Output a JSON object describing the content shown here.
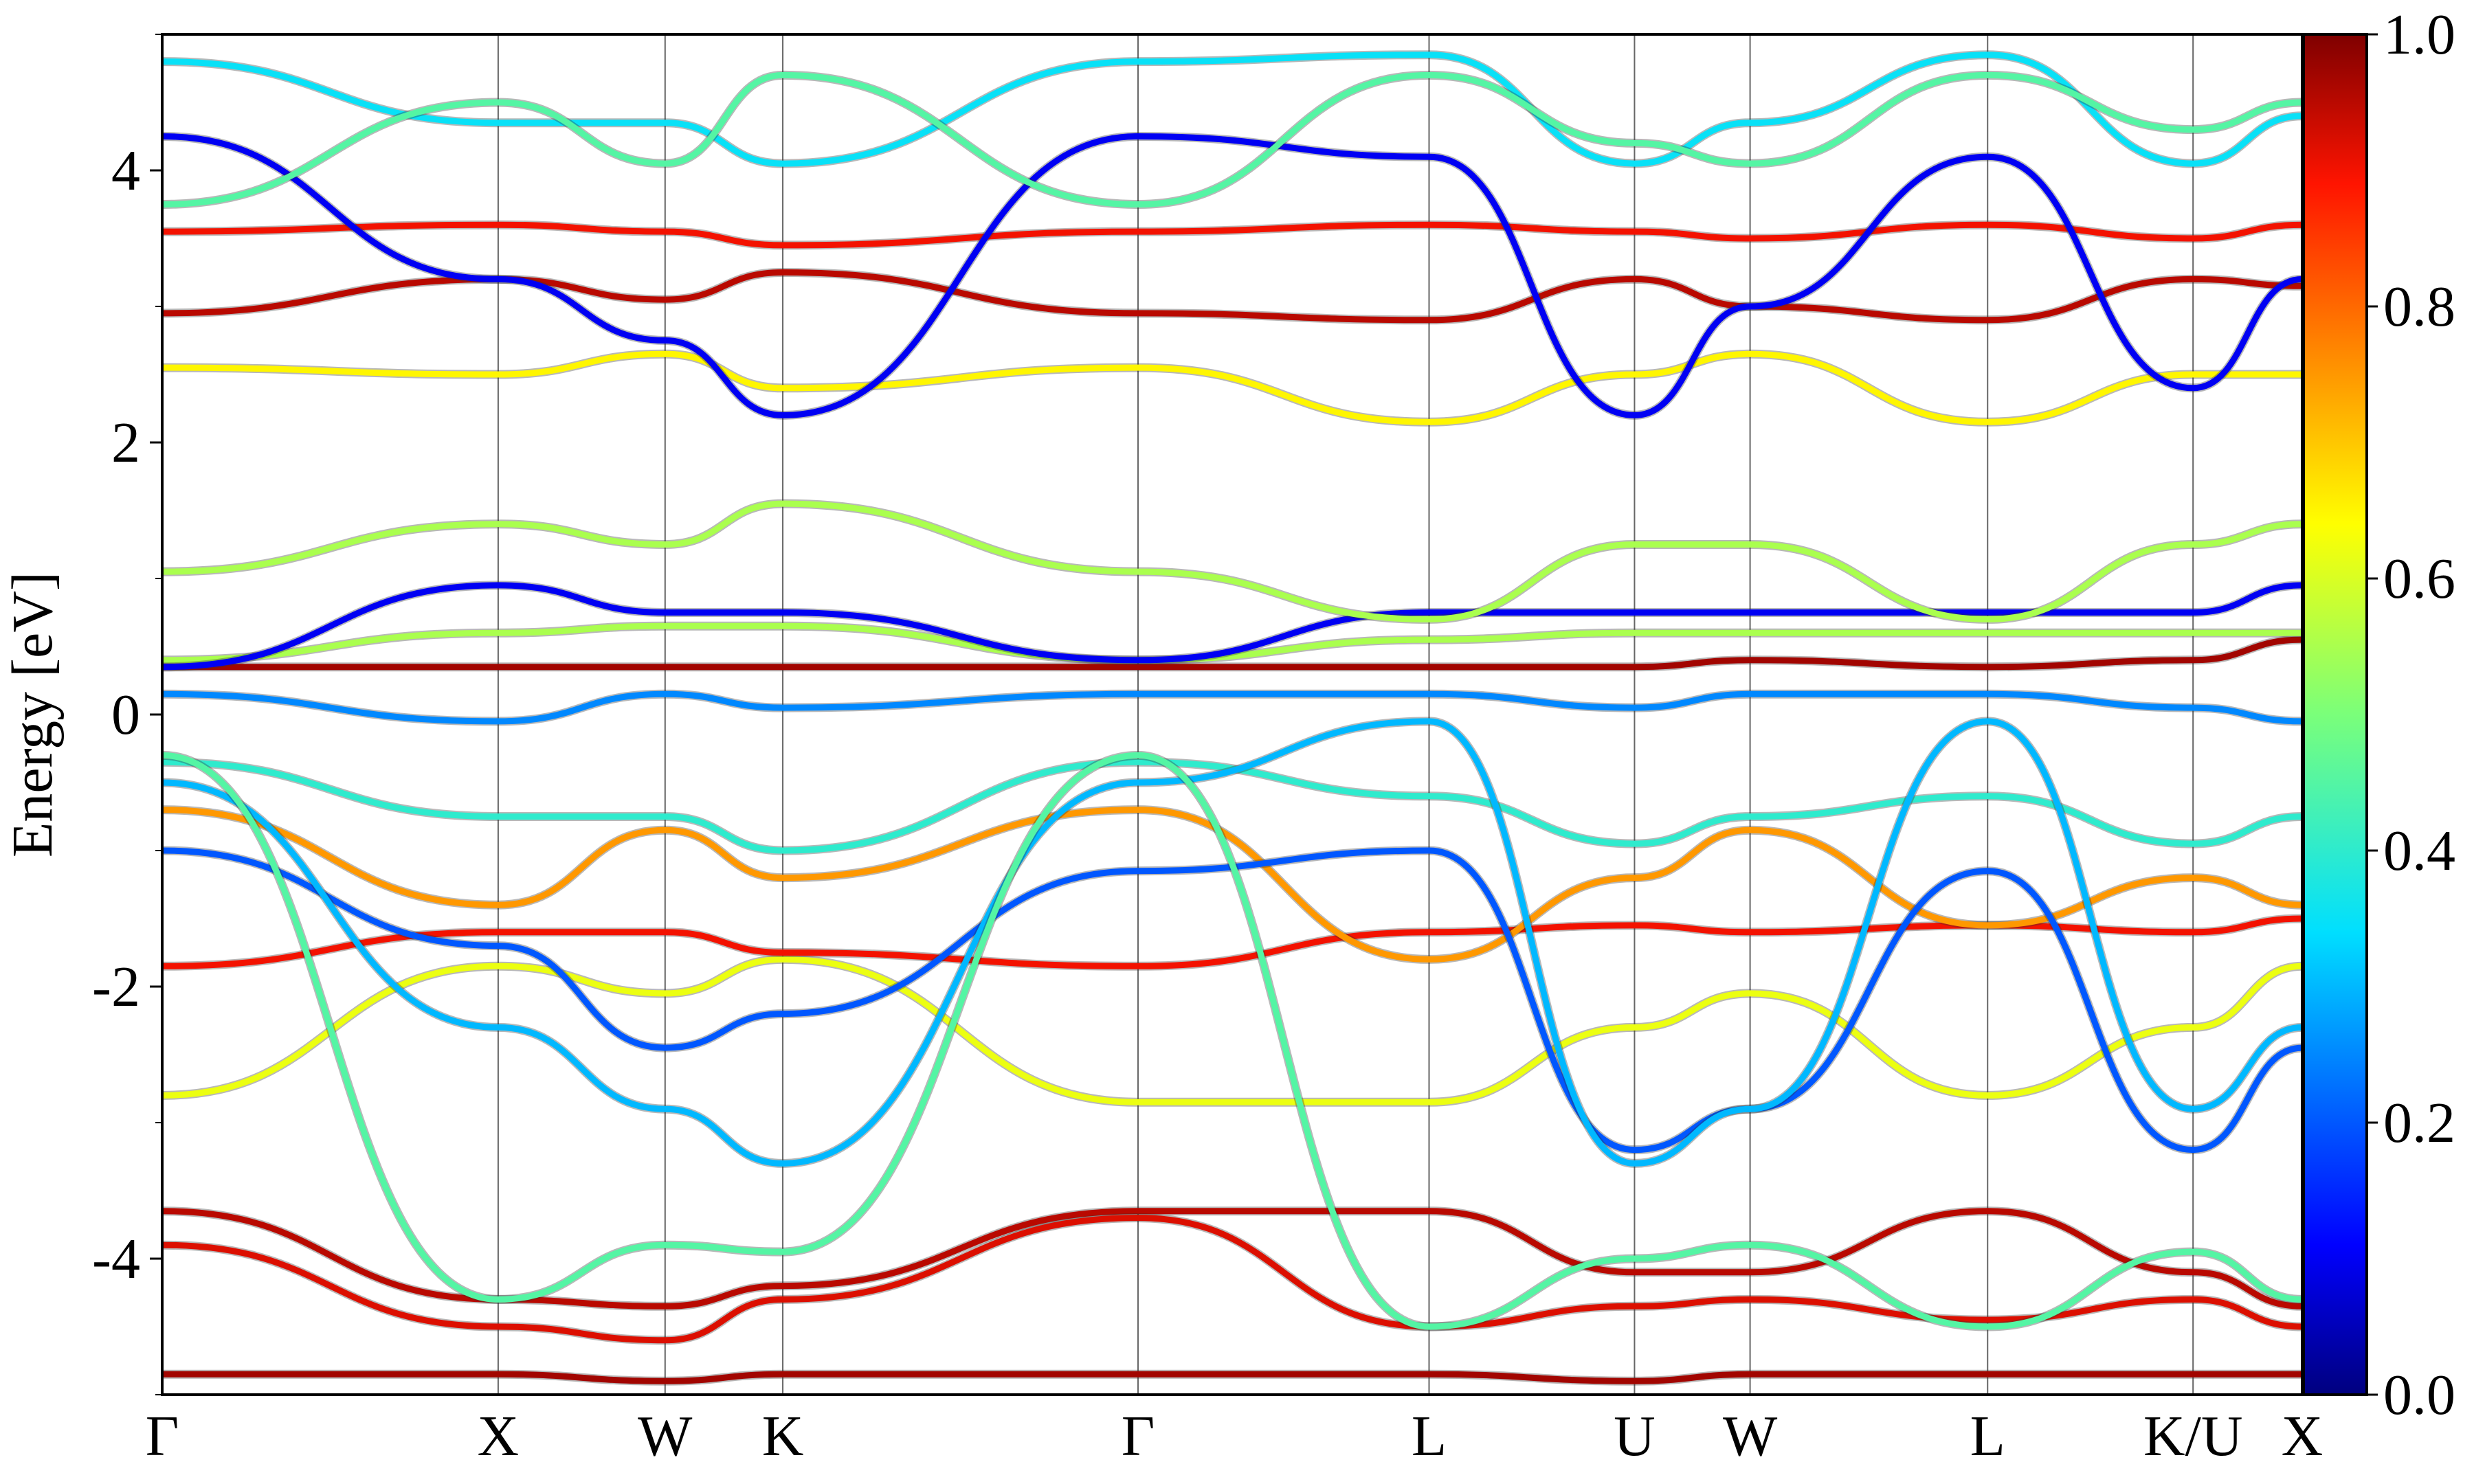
{
  "chart_data": {
    "type": "line",
    "title": "",
    "xlabel": "",
    "ylabel": "Energy [eV]",
    "ylim": [
      -5,
      5
    ],
    "grid": "vertical lines at high-symmetry points",
    "x_ticks": [
      {
        "label": "Γ",
        "x": 0
      },
      {
        "label": "X",
        "x": 0.157
      },
      {
        "label": "W",
        "x": 0.235
      },
      {
        "label": "K",
        "x": 0.29
      },
      {
        "label": "Γ",
        "x": 0.456
      },
      {
        "label": "L",
        "x": 0.592
      },
      {
        "label": "U",
        "x": 0.688
      },
      {
        "label": "W",
        "x": 0.742
      },
      {
        "label": "L",
        "x": 0.853
      },
      {
        "label": "K/U",
        "x": 0.949
      },
      {
        "label": "X",
        "x": 1.0
      }
    ],
    "y_ticks": [
      -4,
      -2,
      0,
      2,
      4
    ],
    "colorbar": {
      "range": [
        0.0,
        1.0
      ],
      "ticks": [
        "0.0",
        "0.2",
        "0.4",
        "0.6",
        "0.8",
        "1.0"
      ],
      "colormap": "jet"
    },
    "series": [
      {
        "color_value": 0.95,
        "points": [
          [
            0,
            -3.65
          ],
          [
            0.157,
            -4.3
          ],
          [
            0.235,
            -4.35
          ],
          [
            0.29,
            -4.2
          ],
          [
            0.456,
            -3.65
          ],
          [
            0.592,
            -3.65
          ],
          [
            0.688,
            -4.1
          ],
          [
            0.742,
            -4.1
          ],
          [
            0.853,
            -3.65
          ],
          [
            0.949,
            -4.1
          ],
          [
            1.0,
            -4.35
          ]
        ]
      },
      {
        "color_value": 0.92,
        "points": [
          [
            0,
            -3.9
          ],
          [
            0.157,
            -4.5
          ],
          [
            0.235,
            -4.6
          ],
          [
            0.29,
            -4.3
          ],
          [
            0.456,
            -3.7
          ],
          [
            0.592,
            -4.5
          ],
          [
            0.688,
            -4.35
          ],
          [
            0.742,
            -4.3
          ],
          [
            0.853,
            -4.45
          ],
          [
            0.949,
            -4.3
          ],
          [
            1.0,
            -4.5
          ]
        ]
      },
      {
        "color_value": 0.97,
        "points": [
          [
            0,
            -4.85
          ],
          [
            0.157,
            -4.85
          ],
          [
            0.235,
            -4.9
          ],
          [
            0.29,
            -4.85
          ],
          [
            0.456,
            -4.85
          ],
          [
            0.592,
            -4.85
          ],
          [
            0.688,
            -4.9
          ],
          [
            0.742,
            -4.85
          ],
          [
            0.853,
            -4.85
          ],
          [
            0.949,
            -4.85
          ],
          [
            1.0,
            -4.85
          ]
        ]
      },
      {
        "color_value": 0.62,
        "points": [
          [
            0,
            -2.8
          ],
          [
            0.157,
            -1.85
          ],
          [
            0.235,
            -2.05
          ],
          [
            0.29,
            -1.8
          ],
          [
            0.456,
            -2.85
          ],
          [
            0.592,
            -2.85
          ],
          [
            0.688,
            -2.3
          ],
          [
            0.742,
            -2.05
          ],
          [
            0.853,
            -2.8
          ],
          [
            0.949,
            -2.3
          ],
          [
            1.0,
            -1.85
          ]
        ]
      },
      {
        "color_value": 0.9,
        "points": [
          [
            0,
            -1.85
          ],
          [
            0.157,
            -1.6
          ],
          [
            0.235,
            -1.6
          ],
          [
            0.29,
            -1.75
          ],
          [
            0.456,
            -1.85
          ],
          [
            0.592,
            -1.6
          ],
          [
            0.688,
            -1.55
          ],
          [
            0.742,
            -1.6
          ],
          [
            0.853,
            -1.55
          ],
          [
            0.949,
            -1.6
          ],
          [
            1.0,
            -1.5
          ]
        ]
      },
      {
        "color_value": 0.75,
        "points": [
          [
            0,
            -0.7
          ],
          [
            0.157,
            -1.4
          ],
          [
            0.235,
            -0.85
          ],
          [
            0.29,
            -1.2
          ],
          [
            0.456,
            -0.7
          ],
          [
            0.592,
            -1.8
          ],
          [
            0.688,
            -1.2
          ],
          [
            0.742,
            -0.85
          ],
          [
            0.853,
            -1.55
          ],
          [
            0.949,
            -1.2
          ],
          [
            1.0,
            -1.4
          ]
        ]
      },
      {
        "color_value": 0.2,
        "points": [
          [
            0,
            -1.0
          ],
          [
            0.157,
            -1.7
          ],
          [
            0.235,
            -2.45
          ],
          [
            0.29,
            -2.2
          ],
          [
            0.456,
            -1.15
          ],
          [
            0.592,
            -1.0
          ],
          [
            0.688,
            -3.2
          ],
          [
            0.742,
            -2.9
          ],
          [
            0.853,
            -1.15
          ],
          [
            0.949,
            -3.2
          ],
          [
            1.0,
            -2.45
          ]
        ]
      },
      {
        "color_value": 0.4,
        "points": [
          [
            0,
            -0.35
          ],
          [
            0.157,
            -0.75
          ],
          [
            0.235,
            -0.75
          ],
          [
            0.29,
            -1.0
          ],
          [
            0.456,
            -0.35
          ],
          [
            0.592,
            -0.6
          ],
          [
            0.688,
            -0.95
          ],
          [
            0.742,
            -0.75
          ],
          [
            0.853,
            -0.6
          ],
          [
            0.949,
            -0.95
          ],
          [
            1.0,
            -0.75
          ]
        ]
      },
      {
        "color_value": 0.25,
        "points": [
          [
            0,
            0.15
          ],
          [
            0.157,
            -0.05
          ],
          [
            0.235,
            0.15
          ],
          [
            0.29,
            0.05
          ],
          [
            0.456,
            0.15
          ],
          [
            0.592,
            0.15
          ],
          [
            0.688,
            0.05
          ],
          [
            0.742,
            0.15
          ],
          [
            0.853,
            0.15
          ],
          [
            0.949,
            0.05
          ],
          [
            1.0,
            -0.05
          ]
        ]
      },
      {
        "color_value": 0.97,
        "points": [
          [
            0,
            0.35
          ],
          [
            0.157,
            0.35
          ],
          [
            0.235,
            0.35
          ],
          [
            0.29,
            0.35
          ],
          [
            0.456,
            0.35
          ],
          [
            0.592,
            0.35
          ],
          [
            0.688,
            0.35
          ],
          [
            0.742,
            0.4
          ],
          [
            0.853,
            0.35
          ],
          [
            0.949,
            0.4
          ],
          [
            1.0,
            0.55
          ]
        ]
      },
      {
        "color_value": 0.55,
        "points": [
          [
            0,
            0.4
          ],
          [
            0.157,
            0.6
          ],
          [
            0.235,
            0.65
          ],
          [
            0.29,
            0.65
          ],
          [
            0.456,
            0.4
          ],
          [
            0.592,
            0.55
          ],
          [
            0.688,
            0.6
          ],
          [
            0.742,
            0.6
          ],
          [
            0.853,
            0.6
          ],
          [
            0.949,
            0.6
          ],
          [
            1.0,
            0.6
          ]
        ]
      },
      {
        "color_value": 0.1,
        "points": [
          [
            0,
            0.35
          ],
          [
            0.157,
            0.95
          ],
          [
            0.235,
            0.75
          ],
          [
            0.29,
            0.75
          ],
          [
            0.456,
            0.4
          ],
          [
            0.592,
            0.75
          ],
          [
            0.688,
            0.75
          ],
          [
            0.742,
            0.75
          ],
          [
            0.853,
            0.75
          ],
          [
            0.949,
            0.75
          ],
          [
            1.0,
            0.95
          ]
        ]
      },
      {
        "color_value": 0.55,
        "points": [
          [
            0,
            1.05
          ],
          [
            0.157,
            1.4
          ],
          [
            0.235,
            1.25
          ],
          [
            0.29,
            1.55
          ],
          [
            0.456,
            1.05
          ],
          [
            0.592,
            0.7
          ],
          [
            0.688,
            1.25
          ],
          [
            0.742,
            1.25
          ],
          [
            0.853,
            0.7
          ],
          [
            0.949,
            1.25
          ],
          [
            1.0,
            1.4
          ]
        ]
      },
      {
        "color_value": 0.65,
        "points": [
          [
            0,
            2.55
          ],
          [
            0.157,
            2.5
          ],
          [
            0.235,
            2.65
          ],
          [
            0.29,
            2.4
          ],
          [
            0.456,
            2.55
          ],
          [
            0.592,
            2.15
          ],
          [
            0.688,
            2.5
          ],
          [
            0.742,
            2.65
          ],
          [
            0.853,
            2.15
          ],
          [
            0.949,
            2.5
          ],
          [
            1.0,
            2.5
          ]
        ]
      },
      {
        "color_value": 0.95,
        "points": [
          [
            0,
            2.95
          ],
          [
            0.157,
            3.2
          ],
          [
            0.235,
            3.05
          ],
          [
            0.29,
            3.25
          ],
          [
            0.456,
            2.95
          ],
          [
            0.592,
            2.9
          ],
          [
            0.688,
            3.2
          ],
          [
            0.742,
            3.0
          ],
          [
            0.853,
            2.9
          ],
          [
            0.949,
            3.2
          ],
          [
            1.0,
            3.15
          ]
        ]
      },
      {
        "color_value": 0.9,
        "points": [
          [
            0,
            3.55
          ],
          [
            0.157,
            3.6
          ],
          [
            0.235,
            3.55
          ],
          [
            0.29,
            3.45
          ],
          [
            0.456,
            3.55
          ],
          [
            0.592,
            3.6
          ],
          [
            0.688,
            3.55
          ],
          [
            0.742,
            3.5
          ],
          [
            0.853,
            3.6
          ],
          [
            0.949,
            3.5
          ],
          [
            1.0,
            3.6
          ]
        ]
      },
      {
        "color_value": 0.1,
        "points": [
          [
            0,
            4.25
          ],
          [
            0.157,
            3.2
          ],
          [
            0.235,
            2.75
          ],
          [
            0.29,
            2.2
          ],
          [
            0.456,
            4.25
          ],
          [
            0.592,
            4.1
          ],
          [
            0.688,
            2.2
          ],
          [
            0.742,
            3.0
          ],
          [
            0.853,
            4.1
          ],
          [
            0.949,
            2.4
          ],
          [
            1.0,
            3.2
          ]
        ]
      },
      {
        "color_value": 0.35,
        "points": [
          [
            0,
            4.8
          ],
          [
            0.157,
            4.35
          ],
          [
            0.235,
            4.35
          ],
          [
            0.29,
            4.05
          ],
          [
            0.456,
            4.8
          ],
          [
            0.592,
            4.85
          ],
          [
            0.688,
            4.05
          ],
          [
            0.742,
            4.35
          ],
          [
            0.853,
            4.85
          ],
          [
            0.949,
            4.05
          ],
          [
            1.0,
            4.4
          ]
        ]
      },
      {
        "color_value": 0.45,
        "points": [
          [
            0,
            3.75
          ],
          [
            0.157,
            4.5
          ],
          [
            0.235,
            4.05
          ],
          [
            0.29,
            4.7
          ],
          [
            0.456,
            3.75
          ],
          [
            0.592,
            4.7
          ],
          [
            0.688,
            4.2
          ],
          [
            0.742,
            4.05
          ],
          [
            0.853,
            4.7
          ],
          [
            0.949,
            4.3
          ],
          [
            1.0,
            4.5
          ]
        ]
      },
      {
        "color_value": 0.3,
        "points": [
          [
            0,
            -0.5
          ],
          [
            0.157,
            -2.3
          ],
          [
            0.235,
            -2.9
          ],
          [
            0.29,
            -3.3
          ],
          [
            0.456,
            -0.5
          ],
          [
            0.592,
            -0.05
          ],
          [
            0.688,
            -3.3
          ],
          [
            0.742,
            -2.9
          ],
          [
            0.853,
            -0.05
          ],
          [
            0.949,
            -2.9
          ],
          [
            1.0,
            -2.3
          ]
        ]
      },
      {
        "color_value": 0.45,
        "points": [
          [
            0,
            -0.3
          ],
          [
            0.157,
            -4.3
          ],
          [
            0.235,
            -3.9
          ],
          [
            0.29,
            -3.95
          ],
          [
            0.456,
            -0.3
          ],
          [
            0.592,
            -4.5
          ],
          [
            0.688,
            -4.0
          ],
          [
            0.742,
            -3.9
          ],
          [
            0.853,
            -4.5
          ],
          [
            0.949,
            -3.95
          ],
          [
            1.0,
            -4.3
          ]
        ]
      }
    ]
  }
}
